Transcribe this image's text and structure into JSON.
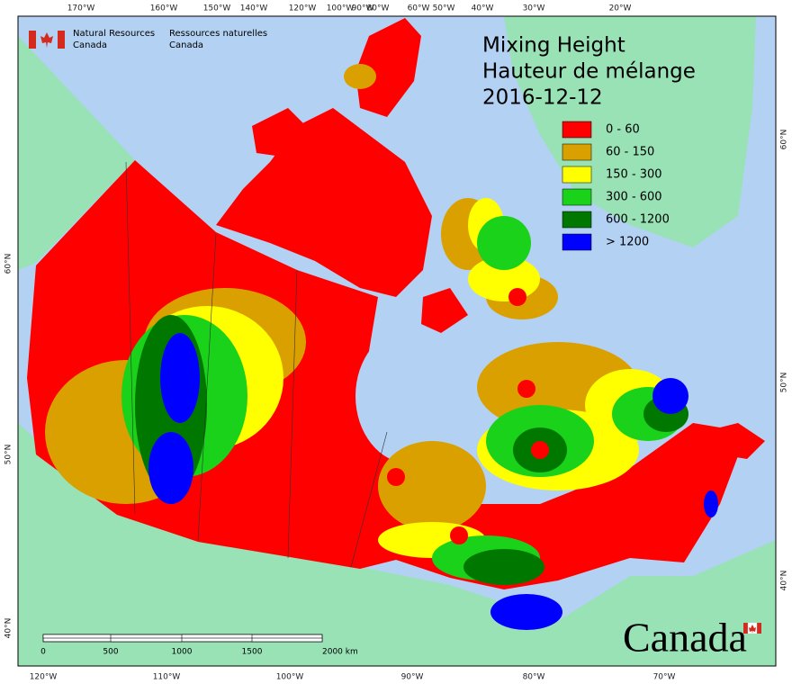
{
  "logo": {
    "english": [
      "Natural Resources",
      "Canada"
    ],
    "french": [
      "Ressources naturelles",
      "Canada"
    ]
  },
  "title": [
    "Mixing Height",
    "Hauteur de mélange",
    "2016-12-12"
  ],
  "legend": [
    {
      "label": "0 - 60",
      "color": "#ff0000"
    },
    {
      "label": "60 - 150",
      "color": "#daa000"
    },
    {
      "label": "150 - 300",
      "color": "#ffff00"
    },
    {
      "label": "300 - 600",
      "color": "#19d219"
    },
    {
      "label": "600 - 1200",
      "color": "#007800"
    },
    {
      "label": "> 1200",
      "color": "#0000ff"
    }
  ],
  "graticule": {
    "top": [
      "170°W",
      "160°W",
      "150°W",
      "140°W",
      "120°W",
      "100°W",
      "90°W",
      "80°W",
      "60°W",
      "50°W",
      "40°W",
      "30°W",
      "20°W"
    ],
    "bottom": [
      "120°W",
      "110°W",
      "100°W",
      "90°W",
      "80°W",
      "70°W"
    ],
    "left": [
      "60°N",
      "50°N",
      "40°N"
    ],
    "right": [
      "60°N",
      "50°N",
      "40°N"
    ]
  },
  "scale_bar": {
    "labels": [
      "0",
      "500",
      "1000",
      "1500",
      "2000 km"
    ]
  },
  "wordmark": "Canada"
}
